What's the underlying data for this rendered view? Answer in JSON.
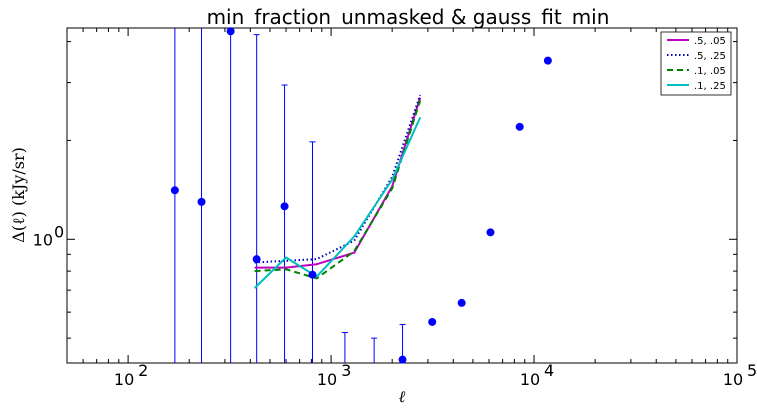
{
  "chart_data": {
    "type": "line",
    "title": "min_fraction_unmasked & gauss_fit_min",
    "xlabel": "ℓ",
    "ylabel": "Δ(ℓ) (kJy/sr)",
    "xscale": "log",
    "yscale": "log",
    "xlim": [
      50,
      100000
    ],
    "ylim": [
      0.42,
      4.4
    ],
    "x_ticks": [
      {
        "value": 100,
        "base": "10",
        "exp": "2"
      },
      {
        "value": 1000,
        "base": "10",
        "exp": "3"
      },
      {
        "value": 10000,
        "base": "10",
        "exp": "4"
      },
      {
        "value": 100000,
        "base": "10",
        "exp": "5"
      }
    ],
    "y_ticks": [
      {
        "value": 1.0,
        "label": "10",
        "exp": "0"
      }
    ],
    "legend_position": "top-right",
    "series": [
      {
        "name": ".5, .05",
        "color": "#bf00bf",
        "style": "solid",
        "x": [
          420,
          600,
          850,
          1300,
          2000,
          2750
        ],
        "y": [
          0.82,
          0.82,
          0.84,
          0.91,
          1.45,
          2.7
        ]
      },
      {
        "name": ".5, .25",
        "color": "#0000bf",
        "style": "dotted",
        "x": [
          420,
          600,
          850,
          1300,
          2000,
          2750
        ],
        "y": [
          0.85,
          0.86,
          0.87,
          0.99,
          1.55,
          2.75
        ]
      },
      {
        "name": ".1, .05",
        "color": "#008000",
        "style": "dashed",
        "x": [
          420,
          600,
          850,
          1300,
          2000,
          2750
        ],
        "y": [
          0.8,
          0.81,
          0.76,
          0.92,
          1.43,
          2.65
        ]
      },
      {
        "name": ".1, .25",
        "color": "#00bfbf",
        "style": "solid",
        "x": [
          420,
          600,
          850,
          1300,
          2000,
          2750
        ],
        "y": [
          0.71,
          0.88,
          0.77,
          1.02,
          1.52,
          2.35
        ]
      }
    ],
    "points": {
      "color": "#0000ff",
      "data": [
        {
          "x": 170,
          "y": 1.41,
          "err_top": 4.4
        },
        {
          "x": 230,
          "y": 1.3,
          "err_top": 4.4
        },
        {
          "x": 320,
          "y": 4.3,
          "err_top": 4.4
        },
        {
          "x": 430,
          "y": 0.87,
          "err_top": 4.2
        },
        {
          "x": 590,
          "y": 1.26,
          "err_top": 2.95
        },
        {
          "x": 810,
          "y": 0.78,
          "err_top": 1.98
        },
        {
          "x": 1170,
          "y": null,
          "err_top": 0.52
        },
        {
          "x": 1630,
          "y": null,
          "err_top": 0.5
        },
        {
          "x": 2250,
          "y": 0.43,
          "err_top": 0.55
        },
        {
          "x": 3150,
          "y": 0.56,
          "err_top": null
        },
        {
          "x": 4400,
          "y": 0.64,
          "err_top": null
        },
        {
          "x": 6100,
          "y": 1.05,
          "err_top": null
        },
        {
          "x": 8500,
          "y": 2.2,
          "err_top": null
        },
        {
          "x": 11700,
          "y": 3.5,
          "err_top": null
        }
      ]
    }
  }
}
